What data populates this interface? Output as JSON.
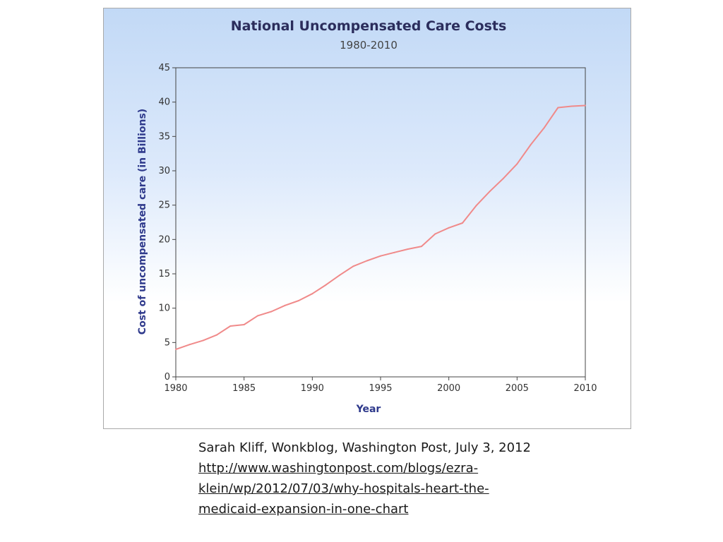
{
  "chart_data": {
    "type": "line",
    "title": "National Uncompensated Care Costs",
    "subtitle": "1980-2010",
    "xlabel": "Year",
    "ylabel": "Cost of uncompensated care (in Billions)",
    "xlim": [
      1980,
      2010
    ],
    "ylim": [
      0,
      45
    ],
    "xticks": [
      "1980",
      "1985",
      "1990",
      "1995",
      "2000",
      "2005",
      "2010"
    ],
    "yticks": [
      "0",
      "5",
      "10",
      "15",
      "20",
      "25",
      "30",
      "35",
      "40",
      "45"
    ],
    "grid": false,
    "legend": "none",
    "line_color": "#f08a8a",
    "x": [
      1980,
      1981,
      1982,
      1983,
      1984,
      1985,
      1986,
      1987,
      1988,
      1989,
      1990,
      1991,
      1992,
      1993,
      1994,
      1995,
      1996,
      1997,
      1998,
      1999,
      2000,
      2001,
      2002,
      2003,
      2004,
      2005,
      2006,
      2007,
      2008,
      2009,
      2010
    ],
    "y": [
      4.0,
      4.7,
      5.3,
      6.1,
      7.4,
      7.6,
      8.9,
      9.5,
      10.4,
      11.1,
      12.1,
      13.4,
      14.8,
      16.1,
      16.9,
      17.6,
      18.1,
      18.6,
      19.0,
      20.8,
      21.7,
      22.4,
      24.9,
      27.0,
      28.9,
      31.0,
      33.8,
      36.3,
      39.2,
      39.4,
      39.5
    ]
  },
  "caption": {
    "citation": "Sarah Kliff, Wonkblog, Washington Post, July 3, 2012",
    "url_line1": "http://www.washingtonpost.com/blogs/ezra-",
    "url_line2": "klein/wp/2012/07/03/why-hospitals-heart-the-",
    "url_line3": "medicaid-expansion-in-one-chart"
  }
}
